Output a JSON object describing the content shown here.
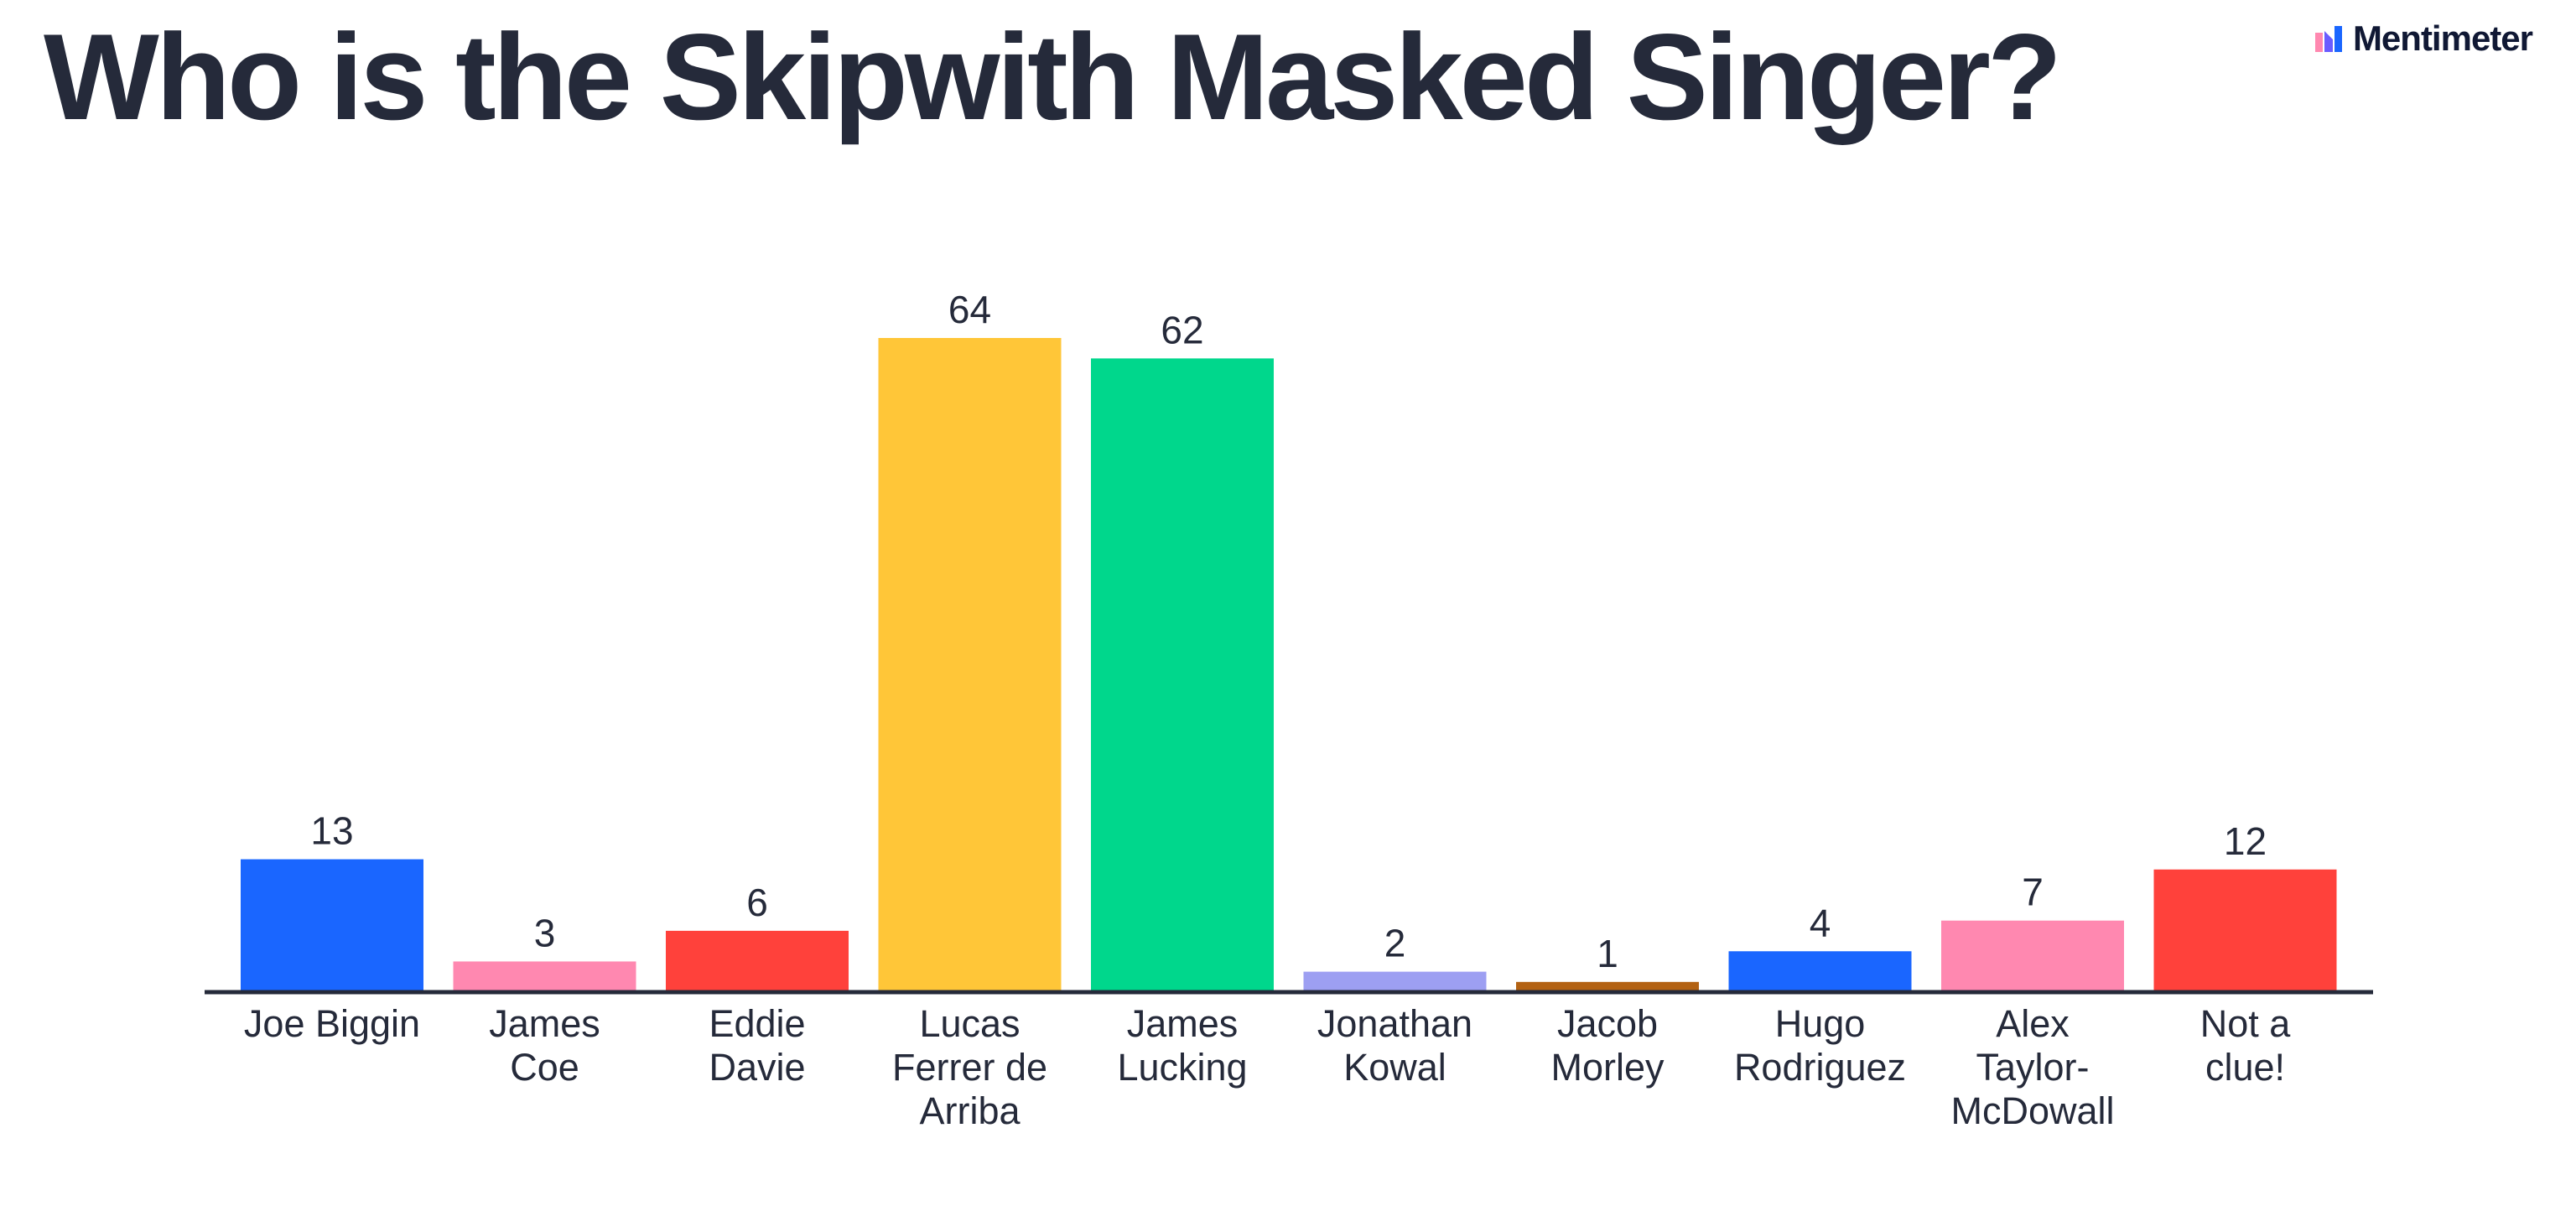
{
  "title": "Who is the Skipwith Masked Singer?",
  "brand": {
    "name": "Mentimeter",
    "icon": "mentimeter-logo-icon"
  },
  "chart_data": {
    "type": "bar",
    "title": "Who is the Skipwith Masked Singer?",
    "xlabel": "",
    "ylabel": "",
    "grid": false,
    "ylim": [
      0,
      64
    ],
    "categories": [
      "Joe Biggin",
      "James Coe",
      "Eddie Davie",
      "Lucas Ferrer de Arriba",
      "James Lucking",
      "Jonathan Kowal",
      "Jacob Morley",
      "Hugo Rodriguez",
      "Alex Taylor-McDowall",
      "Not a clue!"
    ],
    "label_lines": [
      [
        "Joe Biggin"
      ],
      [
        "James",
        "Coe"
      ],
      [
        "Eddie",
        "Davie"
      ],
      [
        "Lucas",
        "Ferrer de",
        "Arriba"
      ],
      [
        "James",
        "Lucking"
      ],
      [
        "Jonathan",
        "Kowal"
      ],
      [
        "Jacob",
        "Morley"
      ],
      [
        "Hugo",
        "Rodriguez"
      ],
      [
        "Alex",
        "Taylor-",
        "McDowall"
      ],
      [
        "Not a",
        "clue!"
      ]
    ],
    "values": [
      13,
      3,
      6,
      64,
      62,
      2,
      1,
      4,
      7,
      12
    ],
    "colors": [
      "#1a66ff",
      "#ff88b0",
      "#ff413b",
      "#ffc638",
      "#00d78c",
      "#9d9ff2",
      "#b36213",
      "#1a66ff",
      "#ff88b0",
      "#ff413b"
    ],
    "baseline_color": "#252a3a"
  }
}
